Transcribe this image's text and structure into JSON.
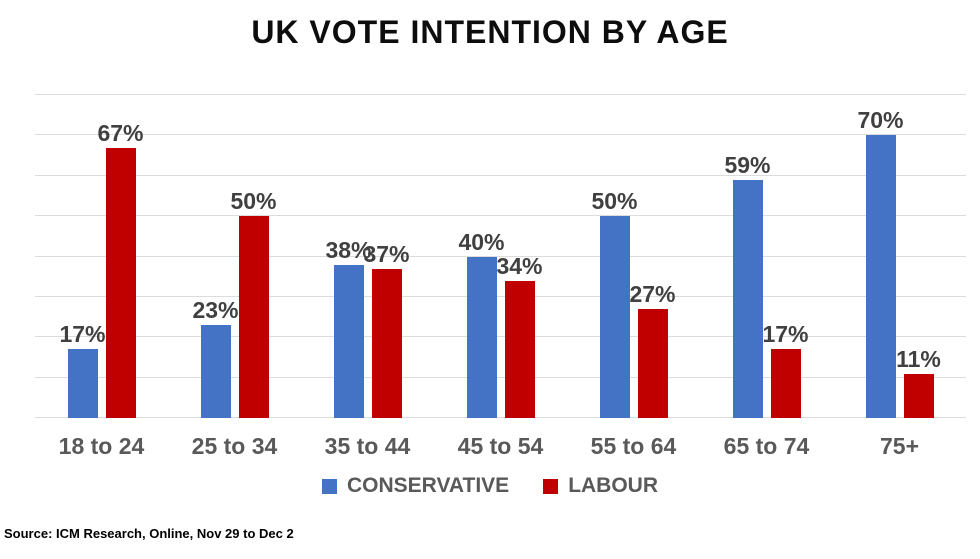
{
  "title": "UK VOTE INTENTION BY AGE",
  "source": "Source: ICM Research, Online, Nov 29 to Dec 2",
  "legend": [
    {
      "label": "CONSERVATIVE",
      "color": "#4472C4"
    },
    {
      "label": "LABOUR",
      "color": "#C00000"
    }
  ],
  "colors": {
    "conservative": "#4472C4",
    "labour": "#C00000",
    "gridline": "#dcdcdc",
    "data_label": "#404040",
    "category_label": "#595959"
  },
  "chart_data": {
    "type": "bar",
    "title": "UK VOTE INTENTION BY AGE",
    "categories": [
      "18 to 24",
      "25 to 34",
      "35 to 44",
      "45 to 54",
      "55 to 64",
      "65 to 74",
      "75+"
    ],
    "series": [
      {
        "name": "CONSERVATIVE",
        "color": "#4472C4",
        "values": [
          17,
          23,
          38,
          40,
          50,
          59,
          70
        ]
      },
      {
        "name": "LABOUR",
        "color": "#C00000",
        "values": [
          67,
          50,
          37,
          34,
          27,
          17,
          11
        ]
      }
    ],
    "value_suffix": "%",
    "xlabel": "",
    "ylabel": "",
    "ylim": [
      0,
      80
    ],
    "gridline_interval": 10,
    "grid": true,
    "data_labels": true,
    "legend_position": "bottom",
    "annotation": "Source: ICM Research, Online, Nov 29 to Dec 2"
  }
}
